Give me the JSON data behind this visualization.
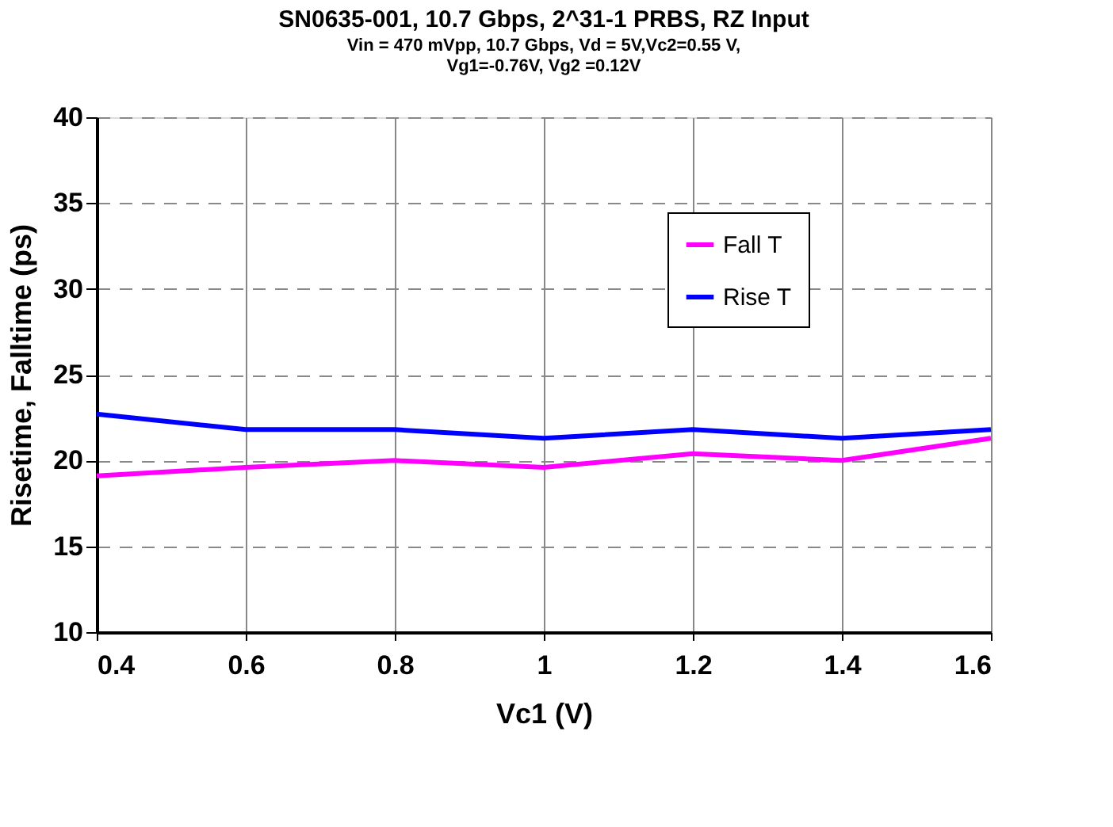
{
  "chart_data": {
    "type": "line",
    "title": "SN0635-001, 10.7 Gbps, 2^31-1 PRBS, RZ Input",
    "subtitle": "Vin =  470 mVpp, 10.7 Gbps, Vd = 5V,Vc2=0.55 V, Vg1=-0.76V, Vg2 =0.12V",
    "xlabel": "Vc1 (V)",
    "ylabel": "Risetime, Falltime (ps)",
    "x": [
      0.4,
      0.6,
      0.8,
      1.0,
      1.2,
      1.4,
      1.6
    ],
    "series": [
      {
        "name": "Fall T",
        "color": "#ff00ff",
        "values": [
          19.1,
          19.6,
          20.0,
          19.6,
          20.4,
          20.0,
          21.3
        ]
      },
      {
        "name": "Rise T",
        "color": "#0000ff",
        "values": [
          22.7,
          21.8,
          21.8,
          21.3,
          21.8,
          21.3,
          21.8
        ]
      }
    ],
    "xlim": [
      0.4,
      1.6
    ],
    "xticks": [
      {
        "value": 0.4,
        "label": "0.4"
      },
      {
        "value": 0.6,
        "label": "0.6"
      },
      {
        "value": 0.8,
        "label": "0.8"
      },
      {
        "value": 1.0,
        "label": "1"
      },
      {
        "value": 1.2,
        "label": "1.2"
      },
      {
        "value": 1.4,
        "label": "1.4"
      },
      {
        "value": 1.6,
        "label": "1.6"
      }
    ],
    "ylim": [
      10,
      40
    ],
    "yticks": [
      10,
      15,
      20,
      25,
      30,
      35,
      40
    ],
    "grid": true,
    "legend": "top right",
    "marker": "none",
    "line_style": "solid"
  }
}
